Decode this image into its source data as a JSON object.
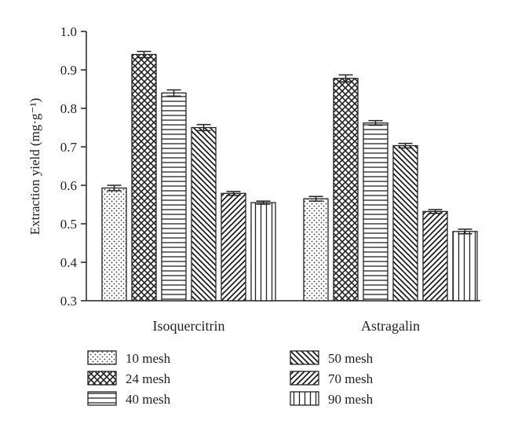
{
  "chart_data": {
    "type": "bar",
    "title": "",
    "xlabel": "",
    "ylabel": "Extraction yield (mg·g⁻¹)",
    "ylim": [
      0.3,
      1.0
    ],
    "yticks": [
      "0.3",
      "0.4",
      "0.5",
      "0.6",
      "0.7",
      "0.8",
      "0.9",
      "1.0"
    ],
    "categories": [
      "Isoquercitrin",
      "Astragalin"
    ],
    "grid": false,
    "legend_position": "bottom",
    "series": [
      {
        "name": "10 mesh",
        "pattern": "dots",
        "values": [
          0.593,
          0.565
        ],
        "errors": [
          0.007,
          0.006
        ]
      },
      {
        "name": "24 mesh",
        "pattern": "crosshatch",
        "values": [
          0.94,
          0.878
        ],
        "errors": [
          0.008,
          0.009
        ]
      },
      {
        "name": "40 mesh",
        "pattern": "horizontal",
        "values": [
          0.84,
          0.762
        ],
        "errors": [
          0.008,
          0.006
        ]
      },
      {
        "name": "50 mesh",
        "pattern": "diagonal-back",
        "values": [
          0.75,
          0.703
        ],
        "errors": [
          0.008,
          0.006
        ]
      },
      {
        "name": "70 mesh",
        "pattern": "diagonal-forward",
        "values": [
          0.579,
          0.532
        ],
        "errors": [
          0.005,
          0.005
        ]
      },
      {
        "name": "90 mesh",
        "pattern": "vertical",
        "values": [
          0.555,
          0.48
        ],
        "errors": [
          0.004,
          0.006
        ]
      }
    ]
  }
}
